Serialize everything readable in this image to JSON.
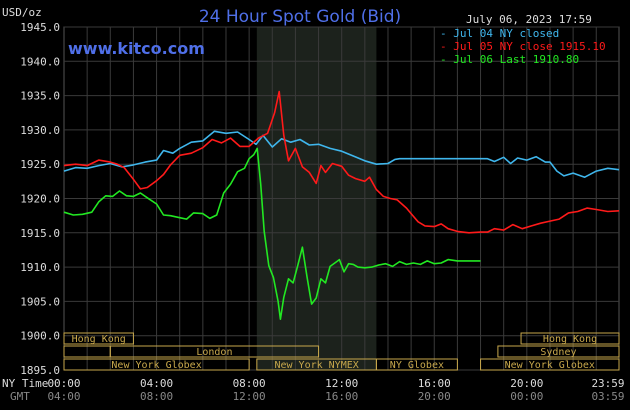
{
  "header": {
    "unit": "USD/oz",
    "title": "24 Hour Spot Gold (Bid)",
    "url": "www.kitco.com",
    "timestamp": "July 06, 2023 17:59"
  },
  "legend": {
    "placement": "top-right",
    "items": [
      {
        "text": "Jul 04 NY closed",
        "color": "#3fb6ec"
      },
      {
        "text": "Jul 05 NY close 1915.10",
        "color": "#ff1a1a"
      },
      {
        "text": "Jul 06 Last 1910.80",
        "color": "#22e822"
      }
    ]
  },
  "axis": {
    "ny_time_label": "NY Time",
    "gmt_label": "GMT",
    "x_ticks": [
      {
        "hour": 0,
        "ny": "00:00",
        "gmt": "04:00"
      },
      {
        "hour": 4,
        "ny": "04:00",
        "gmt": "08:00"
      },
      {
        "hour": 8,
        "ny": "08:00",
        "gmt": "12:00"
      },
      {
        "hour": 12,
        "ny": "12:00",
        "gmt": "16:00"
      },
      {
        "hour": 16,
        "ny": "16:00",
        "gmt": "20:00"
      },
      {
        "hour": 20,
        "ny": "20:00",
        "gmt": "00:00"
      },
      {
        "hour": 23.983,
        "ny": "23:59",
        "gmt": "03:59"
      }
    ]
  },
  "sessions": [
    {
      "label": "Hong Kong",
      "start": 0,
      "end": 3
    },
    {
      "label": "Hong Kong",
      "start": 19.75,
      "end": 23.983
    },
    {
      "label": "Sydney",
      "start": 18.75,
      "end": 23.983
    },
    {
      "label": "London",
      "start": 2,
      "end": 11
    },
    {
      "label": "",
      "start": 0,
      "end": 2
    },
    {
      "label": "New York Globex",
      "start": 0,
      "end": 8
    },
    {
      "label": "New York NYMEX",
      "start": 8.333,
      "end": 13.5
    },
    {
      "label": "NY Globex",
      "start": 13.5,
      "end": 17
    },
    {
      "label": "New York Globex",
      "start": 18,
      "end": 23.983
    }
  ],
  "chart_data": {
    "type": "line",
    "x_unit": "NY hour",
    "xlim": [
      0,
      23.983
    ],
    "ylim": [
      1895,
      1945
    ],
    "y_ticks": [
      1895,
      1900,
      1905,
      1910,
      1915,
      1920,
      1925,
      1930,
      1935,
      1940,
      1945
    ],
    "grid": true,
    "highlight_band": [
      8.333,
      13.5
    ],
    "series": [
      {
        "name": "Jul 04 NY closed",
        "color": "#3fb6ec",
        "points": [
          [
            0,
            1924.0
          ],
          [
            0.5,
            1924.5
          ],
          [
            1,
            1924.4
          ],
          [
            1.5,
            1924.8
          ],
          [
            2,
            1925.1
          ],
          [
            2.5,
            1924.6
          ],
          [
            3,
            1924.9
          ],
          [
            3.5,
            1925.3
          ],
          [
            4,
            1925.6
          ],
          [
            4.3,
            1927.0
          ],
          [
            4.7,
            1926.6
          ],
          [
            5,
            1927.3
          ],
          [
            5.5,
            1928.2
          ],
          [
            6,
            1928.4
          ],
          [
            6.5,
            1929.8
          ],
          [
            7,
            1929.5
          ],
          [
            7.5,
            1929.7
          ],
          [
            8,
            1928.6
          ],
          [
            8.3,
            1927.9
          ],
          [
            8.6,
            1929.2
          ],
          [
            9,
            1927.5
          ],
          [
            9.4,
            1928.7
          ],
          [
            9.8,
            1928.2
          ],
          [
            10.2,
            1928.6
          ],
          [
            10.6,
            1927.8
          ],
          [
            11,
            1927.9
          ],
          [
            11.5,
            1927.3
          ],
          [
            12,
            1926.9
          ],
          [
            12.5,
            1926.2
          ],
          [
            13,
            1925.5
          ],
          [
            13.5,
            1925.0
          ],
          [
            14,
            1925.1
          ],
          [
            14.3,
            1925.7
          ],
          [
            14.5,
            1925.8
          ],
          [
            15,
            1925.8
          ],
          [
            16,
            1925.8
          ],
          [
            17,
            1925.8
          ],
          [
            18,
            1925.8
          ],
          [
            18.3,
            1925.8
          ],
          [
            18.6,
            1925.4
          ],
          [
            19,
            1926.0
          ],
          [
            19.3,
            1925.1
          ],
          [
            19.6,
            1925.9
          ],
          [
            20,
            1925.6
          ],
          [
            20.4,
            1926.1
          ],
          [
            20.8,
            1925.3
          ],
          [
            21,
            1925.3
          ],
          [
            21.3,
            1924.0
          ],
          [
            21.6,
            1923.3
          ],
          [
            22,
            1923.7
          ],
          [
            22.5,
            1923.1
          ],
          [
            23,
            1924.0
          ],
          [
            23.5,
            1924.4
          ],
          [
            23.983,
            1924.2
          ]
        ]
      },
      {
        "name": "Jul 05 NY close 1915.10",
        "color": "#ff1a1a",
        "points": [
          [
            0,
            1924.8
          ],
          [
            0.5,
            1925.0
          ],
          [
            1,
            1924.8
          ],
          [
            1.5,
            1925.6
          ],
          [
            2,
            1925.3
          ],
          [
            2.3,
            1925.0
          ],
          [
            2.6,
            1924.5
          ],
          [
            3,
            1922.8
          ],
          [
            3.3,
            1921.4
          ],
          [
            3.6,
            1921.6
          ],
          [
            4,
            1922.6
          ],
          [
            4.3,
            1923.5
          ],
          [
            4.6,
            1924.9
          ],
          [
            5,
            1926.3
          ],
          [
            5.5,
            1926.6
          ],
          [
            6,
            1927.4
          ],
          [
            6.4,
            1928.6
          ],
          [
            6.8,
            1928.1
          ],
          [
            7.2,
            1928.8
          ],
          [
            7.6,
            1927.6
          ],
          [
            8,
            1927.6
          ],
          [
            8.4,
            1928.8
          ],
          [
            8.8,
            1929.5
          ],
          [
            9.1,
            1932.5
          ],
          [
            9.3,
            1935.6
          ],
          [
            9.5,
            1929.2
          ],
          [
            9.7,
            1925.5
          ],
          [
            10,
            1927.3
          ],
          [
            10.3,
            1924.6
          ],
          [
            10.6,
            1923.8
          ],
          [
            10.9,
            1922.2
          ],
          [
            11.1,
            1924.8
          ],
          [
            11.3,
            1923.8
          ],
          [
            11.6,
            1925.1
          ],
          [
            12,
            1924.7
          ],
          [
            12.3,
            1923.4
          ],
          [
            12.6,
            1922.9
          ],
          [
            13,
            1922.5
          ],
          [
            13.2,
            1923.1
          ],
          [
            13.5,
            1921.3
          ],
          [
            13.8,
            1920.3
          ],
          [
            14.1,
            1920.0
          ],
          [
            14.4,
            1919.8
          ],
          [
            14.8,
            1918.6
          ],
          [
            15,
            1917.8
          ],
          [
            15.3,
            1916.6
          ],
          [
            15.6,
            1916.0
          ],
          [
            16,
            1915.9
          ],
          [
            16.3,
            1916.3
          ],
          [
            16.6,
            1915.6
          ],
          [
            17,
            1915.2
          ],
          [
            17.5,
            1915.0
          ],
          [
            18,
            1915.1
          ],
          [
            18.3,
            1915.1
          ],
          [
            18.6,
            1915.6
          ],
          [
            19,
            1915.4
          ],
          [
            19.4,
            1916.2
          ],
          [
            19.8,
            1915.6
          ],
          [
            20.2,
            1916.0
          ],
          [
            20.6,
            1916.4
          ],
          [
            21,
            1916.7
          ],
          [
            21.4,
            1917.0
          ],
          [
            21.8,
            1917.9
          ],
          [
            22.2,
            1918.1
          ],
          [
            22.6,
            1918.6
          ],
          [
            23,
            1918.4
          ],
          [
            23.5,
            1918.1
          ],
          [
            23.983,
            1918.2
          ]
        ]
      },
      {
        "name": "Jul 06 Last 1910.80",
        "color": "#22e822",
        "points": [
          [
            0,
            1918.0
          ],
          [
            0.4,
            1917.6
          ],
          [
            0.8,
            1917.7
          ],
          [
            1.2,
            1918.0
          ],
          [
            1.5,
            1919.5
          ],
          [
            1.8,
            1920.4
          ],
          [
            2.1,
            1920.3
          ],
          [
            2.4,
            1921.1
          ],
          [
            2.7,
            1920.4
          ],
          [
            3,
            1920.3
          ],
          [
            3.3,
            1920.8
          ],
          [
            3.6,
            1920.1
          ],
          [
            4,
            1919.2
          ],
          [
            4.3,
            1917.6
          ],
          [
            4.6,
            1917.5
          ],
          [
            5,
            1917.2
          ],
          [
            5.3,
            1917.0
          ],
          [
            5.6,
            1917.9
          ],
          [
            6,
            1917.8
          ],
          [
            6.3,
            1917.1
          ],
          [
            6.6,
            1917.6
          ],
          [
            6.9,
            1920.8
          ],
          [
            7.2,
            1922.1
          ],
          [
            7.5,
            1923.9
          ],
          [
            7.8,
            1924.4
          ],
          [
            8,
            1925.8
          ],
          [
            8.2,
            1926.4
          ],
          [
            8.35,
            1927.3
          ],
          [
            8.5,
            1922.1
          ],
          [
            8.65,
            1915.2
          ],
          [
            8.85,
            1910.2
          ],
          [
            9.05,
            1908.5
          ],
          [
            9.25,
            1905.0
          ],
          [
            9.35,
            1902.4
          ],
          [
            9.5,
            1905.6
          ],
          [
            9.7,
            1908.3
          ],
          [
            9.9,
            1907.7
          ],
          [
            10.1,
            1910.2
          ],
          [
            10.3,
            1912.9
          ],
          [
            10.5,
            1908.6
          ],
          [
            10.7,
            1904.6
          ],
          [
            10.9,
            1905.5
          ],
          [
            11.1,
            1908.3
          ],
          [
            11.3,
            1907.7
          ],
          [
            11.5,
            1910.1
          ],
          [
            11.7,
            1910.6
          ],
          [
            11.9,
            1911.1
          ],
          [
            12.1,
            1909.3
          ],
          [
            12.3,
            1910.5
          ],
          [
            12.5,
            1910.4
          ],
          [
            12.7,
            1910.0
          ],
          [
            13,
            1909.9
          ],
          [
            13.3,
            1910.0
          ],
          [
            13.6,
            1910.3
          ],
          [
            13.9,
            1910.5
          ],
          [
            14.2,
            1910.1
          ],
          [
            14.5,
            1910.8
          ],
          [
            14.8,
            1910.4
          ],
          [
            15.1,
            1910.6
          ],
          [
            15.4,
            1910.4
          ],
          [
            15.7,
            1910.9
          ],
          [
            16,
            1910.5
          ],
          [
            16.3,
            1910.6
          ],
          [
            16.6,
            1911.1
          ],
          [
            17,
            1910.9
          ],
          [
            17.5,
            1910.9
          ],
          [
            18,
            1910.9
          ]
        ]
      }
    ]
  }
}
